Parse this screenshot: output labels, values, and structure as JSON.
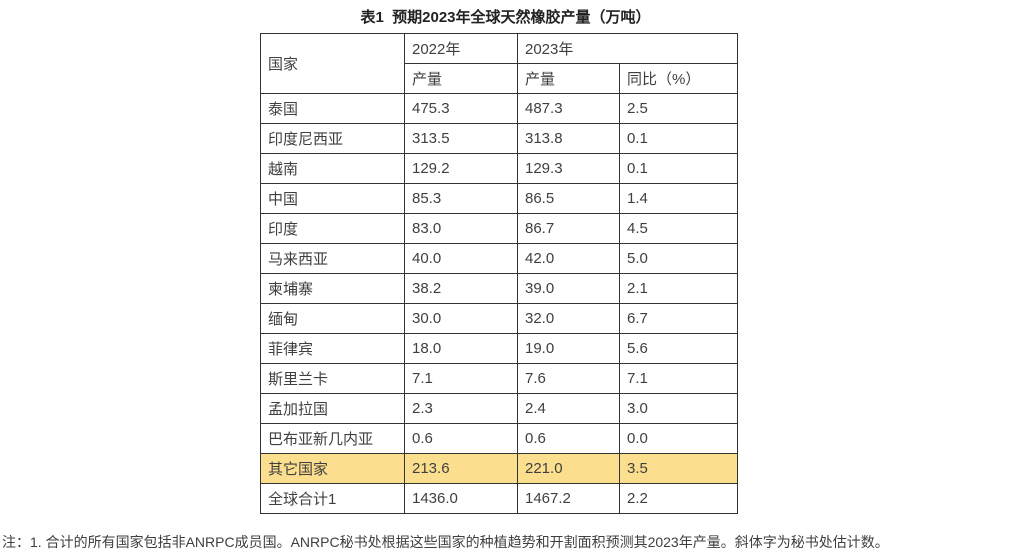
{
  "page": {
    "title": "表1  预期2023年全球天然橡胶产量（万吨）",
    "note": "注：1. 合计的所有国家包括非ANRPC成员国。ANRPC秘书处根据这些国家的种植趋势和开割面积预测其2023年产量。斜体字为秘书处估计数。"
  },
  "table": {
    "headers": {
      "country": "国家",
      "y2022": "2022年",
      "y2023": "2023年",
      "output_2022": "产量",
      "output_2023": "产量",
      "yoy": "同比（%）"
    },
    "rows": [
      {
        "country": "泰国",
        "v2022": "475.3",
        "v2023": "487.3",
        "yoy": "2.5",
        "highlight": false
      },
      {
        "country": "印度尼西亚",
        "v2022": "313.5",
        "v2023": "313.8",
        "yoy": "0.1",
        "highlight": false
      },
      {
        "country": "越南",
        "v2022": "129.2",
        "v2023": "129.3",
        "yoy": "0.1",
        "highlight": false
      },
      {
        "country": "中国",
        "v2022": "85.3",
        "v2023": "86.5",
        "yoy": "1.4",
        "highlight": false
      },
      {
        "country": "印度",
        "v2022": "83.0",
        "v2023": "86.7",
        "yoy": "4.5",
        "highlight": false
      },
      {
        "country": "马来西亚",
        "v2022": "40.0",
        "v2023": "42.0",
        "yoy": "5.0",
        "highlight": false
      },
      {
        "country": "柬埔寨",
        "v2022": "38.2",
        "v2023": "39.0",
        "yoy": "2.1",
        "highlight": false
      },
      {
        "country": "缅甸",
        "v2022": "30.0",
        "v2023": "32.0",
        "yoy": "6.7",
        "highlight": false
      },
      {
        "country": "菲律宾",
        "v2022": "18.0",
        "v2023": "19.0",
        "yoy": "5.6",
        "highlight": false
      },
      {
        "country": "斯里兰卡",
        "v2022": "7.1",
        "v2023": "7.6",
        "yoy": "7.1",
        "highlight": false
      },
      {
        "country": "孟加拉国",
        "v2022": "2.3",
        "v2023": "2.4",
        "yoy": "3.0",
        "highlight": false
      },
      {
        "country": "巴布亚新几内亚",
        "v2022": "0.6",
        "v2023": "0.6",
        "yoy": "0.0",
        "highlight": false
      },
      {
        "country": "其它国家",
        "v2022": "213.6",
        "v2023": "221.0",
        "yoy": "3.5",
        "highlight": true
      },
      {
        "country": "全球合计1",
        "v2022": "1436.0",
        "v2023": "1467.2",
        "yoy": "2.2",
        "highlight": false
      }
    ]
  },
  "colors": {
    "highlight": "#FBDF8F",
    "border": "#333333",
    "text": "#3F3F3F"
  }
}
